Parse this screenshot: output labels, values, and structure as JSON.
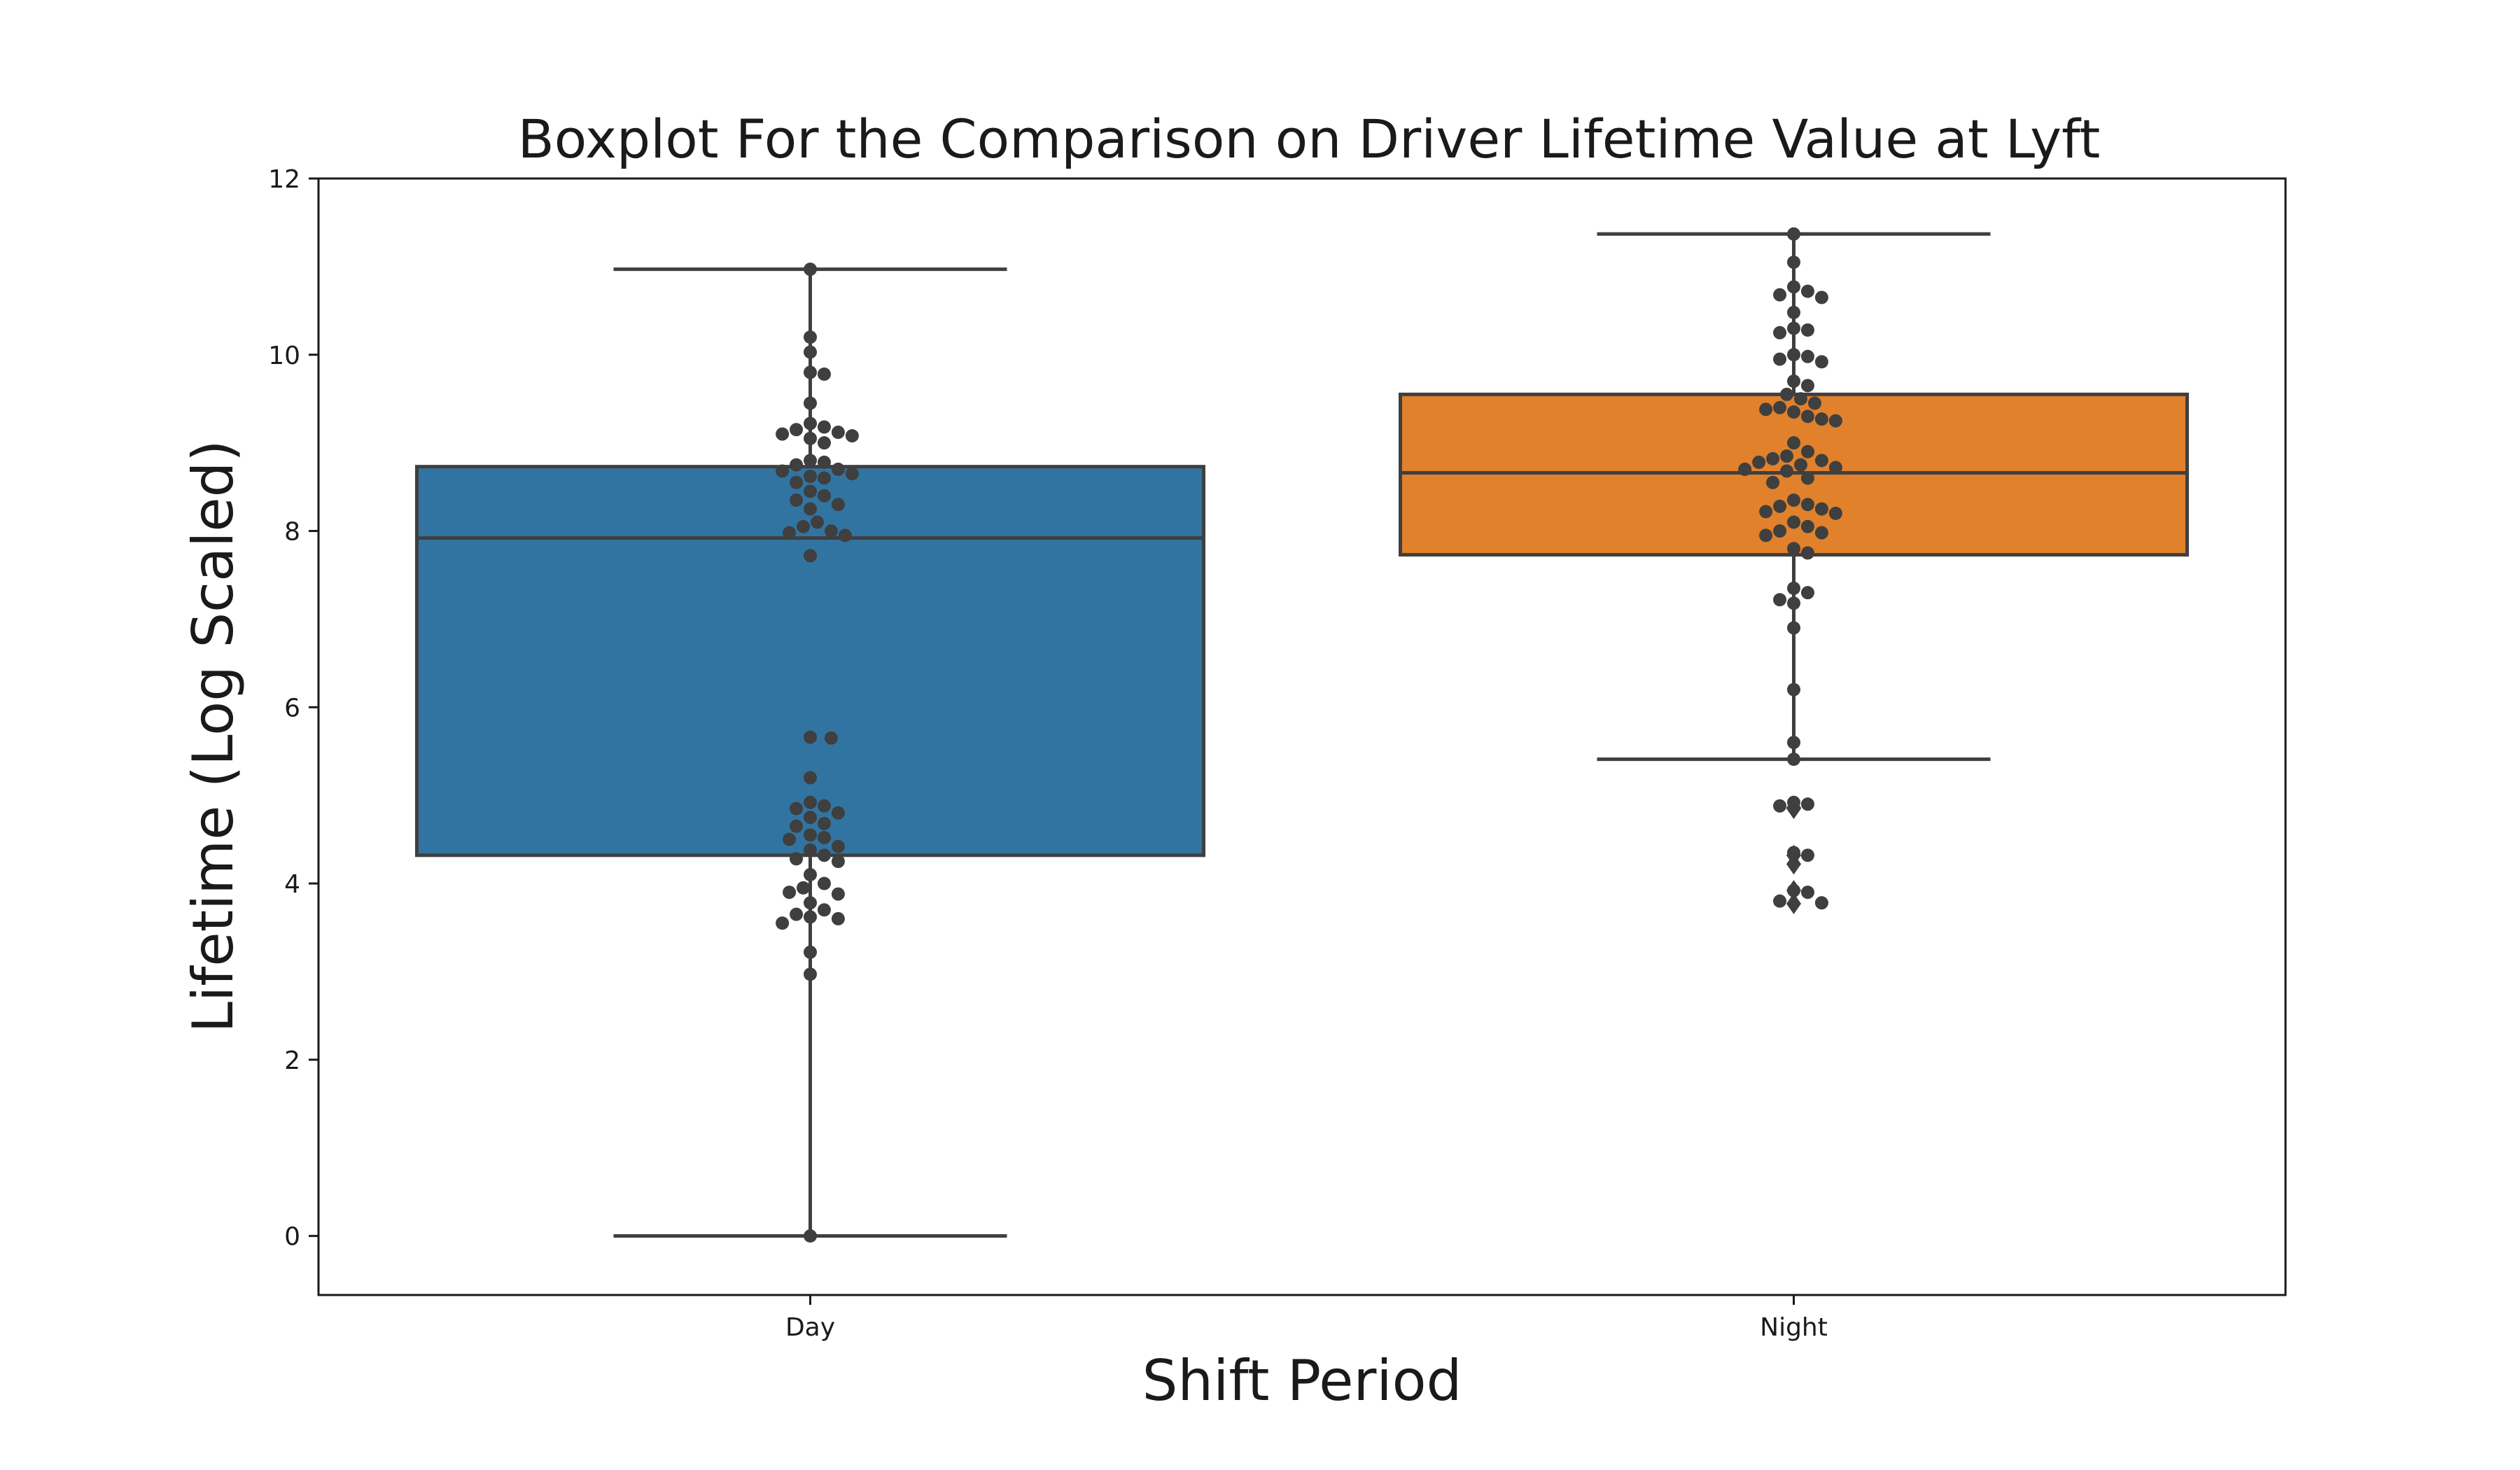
{
  "chart_data": {
    "type": "boxplot",
    "title": "Boxplot For the Comparison on Driver Lifetime Value at Lyft",
    "xlabel": "Shift Period",
    "ylabel": "Lifetime (Log Scaled)",
    "categories": [
      "Day",
      "Night"
    ],
    "ylim": [
      -0.67,
      12
    ],
    "yticks": [
      0,
      2,
      4,
      6,
      8,
      10,
      12
    ],
    "grid": false,
    "colors": {
      "Day": "#3274a1",
      "Night": "#e1812c",
      "edge": "#3f3f3f",
      "point": "#3f3f3f"
    },
    "boxes": [
      {
        "category": "Day",
        "whisker_low": 0.0,
        "q1": 4.32,
        "median": 7.92,
        "q3": 8.73,
        "whisker_high": 10.97,
        "outliers": []
      },
      {
        "category": "Night",
        "whisker_low": 5.41,
        "q1": 7.73,
        "median": 8.66,
        "q3": 9.55,
        "whisker_high": 11.37,
        "outliers": [
          4.86,
          4.85,
          4.32,
          4.22,
          3.92,
          3.77
        ]
      }
    ],
    "points": [
      {
        "category": "Day",
        "values": [
          10.97,
          10.2,
          10.03,
          9.8,
          9.78,
          9.45,
          9.22,
          9.18,
          9.15,
          9.12,
          9.1,
          9.08,
          9.05,
          9.0,
          8.8,
          8.78,
          8.75,
          8.7,
          8.68,
          8.65,
          8.62,
          8.6,
          8.55,
          8.45,
          8.4,
          8.35,
          8.3,
          8.25,
          8.1,
          8.05,
          8.0,
          7.98,
          7.95,
          7.72,
          5.66,
          5.65,
          5.2,
          4.92,
          4.88,
          4.85,
          4.8,
          4.75,
          4.68,
          4.65,
          4.55,
          4.52,
          4.5,
          4.42,
          4.38,
          4.32,
          4.28,
          4.25,
          4.1,
          4.0,
          3.95,
          3.9,
          3.88,
          3.78,
          3.7,
          3.65,
          3.62,
          3.6,
          3.55,
          3.22,
          2.97,
          0.0
        ]
      },
      {
        "category": "Night",
        "values": [
          11.37,
          11.05,
          10.77,
          10.72,
          10.68,
          10.65,
          10.48,
          10.3,
          10.28,
          10.25,
          10.0,
          9.98,
          9.95,
          9.92,
          9.7,
          9.65,
          9.55,
          9.5,
          9.45,
          9.4,
          9.38,
          9.35,
          9.3,
          9.27,
          9.25,
          9.0,
          8.9,
          8.85,
          8.82,
          8.8,
          8.78,
          8.75,
          8.72,
          8.7,
          8.68,
          8.6,
          8.55,
          8.35,
          8.3,
          8.28,
          8.25,
          8.22,
          8.2,
          8.1,
          8.05,
          8.0,
          7.98,
          7.95,
          7.8,
          7.75,
          7.35,
          7.3,
          7.22,
          7.18,
          6.9,
          6.2,
          5.6,
          5.41,
          4.92,
          4.9,
          4.88,
          4.35,
          4.32,
          3.92,
          3.9,
          3.8,
          3.78
        ]
      }
    ]
  }
}
